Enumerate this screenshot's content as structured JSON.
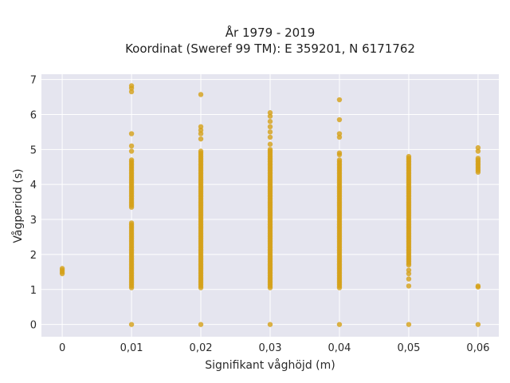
{
  "chart_data": {
    "type": "scatter",
    "title_lines": [
      "År 1979 - 2019",
      "Koordinat (Sweref 99 TM): E 359201, N 6171762"
    ],
    "xlabel": "Signifikant våghöjd (m)",
    "ylabel": "Vågperiod (s)",
    "xlim": [
      -0.003,
      0.063
    ],
    "ylim": [
      -0.35,
      7.15
    ],
    "x_ticks": [
      0,
      0.01,
      0.02,
      0.03,
      0.04,
      0.05,
      0.06
    ],
    "x_tick_labels": [
      "0",
      "0,01",
      "0,02",
      "0,03",
      "0,04",
      "0,05",
      "0,06"
    ],
    "y_ticks": [
      0,
      1,
      2,
      3,
      4,
      5,
      6,
      7
    ],
    "y_tick_labels": [
      "0",
      "1",
      "2",
      "3",
      "4",
      "5",
      "6",
      "7"
    ],
    "grid": true,
    "plot_background": "#e5e5ef",
    "marker_color": "#d4a017",
    "clusters": [
      {
        "x": 0,
        "ranges": [
          [
            1.45,
            1.6
          ]
        ],
        "points": []
      },
      {
        "x": 0.01,
        "ranges": [
          [
            1.05,
            2.9
          ],
          [
            3.35,
            4.7
          ]
        ],
        "points": [
          0,
          4.95,
          5.1,
          5.45,
          6.65,
          6.75,
          6.82
        ]
      },
      {
        "x": 0.02,
        "ranges": [
          [
            1.05,
            4.95
          ]
        ],
        "points": [
          0,
          5.3,
          5.45,
          5.55,
          5.65,
          6.57
        ]
      },
      {
        "x": 0.03,
        "ranges": [
          [
            1.05,
            5.0
          ]
        ],
        "points": [
          0,
          5.15,
          5.35,
          5.5,
          5.65,
          5.8,
          5.95,
          6.05
        ]
      },
      {
        "x": 0.04,
        "ranges": [
          [
            1.05,
            4.7
          ]
        ],
        "points": [
          0,
          4.85,
          4.9,
          5.35,
          5.45,
          5.85,
          6.42
        ]
      },
      {
        "x": 0.05,
        "ranges": [
          [
            1.7,
            4.8
          ]
        ],
        "points": [
          0,
          1.1,
          1.3,
          1.45,
          1.55
        ]
      },
      {
        "x": 0.06,
        "ranges": [
          [
            4.35,
            4.75
          ]
        ],
        "points": [
          0,
          1.07,
          1.1,
          4.95,
          5.05
        ]
      }
    ]
  }
}
